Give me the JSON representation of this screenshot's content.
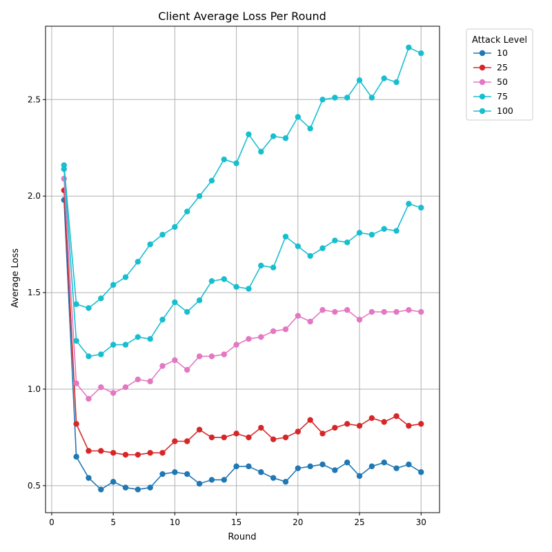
{
  "chart_data": {
    "type": "line",
    "title": "Client Average Loss Per Round",
    "xlabel": "Round",
    "ylabel": "Average Loss",
    "xlim": [
      -0.5,
      31.5
    ],
    "ylim": [
      0.36,
      2.88
    ],
    "xticks": [
      0,
      5,
      10,
      15,
      20,
      25,
      30
    ],
    "yticks": [
      0.5,
      1.0,
      1.5,
      2.0,
      2.5
    ],
    "xtick_labels": [
      "0",
      "5",
      "10",
      "15",
      "20",
      "25",
      "30"
    ],
    "ytick_labels": [
      "0.5",
      "1.0",
      "1.5",
      "2.0",
      "2.5"
    ],
    "grid": true,
    "legend_title": "Attack Level",
    "legend_position": "outside-top-right",
    "x": [
      1,
      2,
      3,
      4,
      5,
      6,
      7,
      8,
      9,
      10,
      11,
      12,
      13,
      14,
      15,
      16,
      17,
      18,
      19,
      20,
      21,
      22,
      23,
      24,
      25,
      26,
      27,
      28,
      29,
      30
    ],
    "series": [
      {
        "name": "10",
        "color": "#1f77b4",
        "values": [
          1.98,
          0.65,
          0.54,
          0.48,
          0.52,
          0.49,
          0.48,
          0.49,
          0.56,
          0.57,
          0.56,
          0.51,
          0.53,
          0.53,
          0.6,
          0.6,
          0.57,
          0.54,
          0.52,
          0.59,
          0.6,
          0.61,
          0.58,
          0.62,
          0.55,
          0.6,
          0.62,
          0.59,
          0.61,
          0.57
        ]
      },
      {
        "name": "25",
        "color": "#d62728",
        "values": [
          2.03,
          0.82,
          0.68,
          0.68,
          0.67,
          0.66,
          0.66,
          0.67,
          0.67,
          0.73,
          0.73,
          0.79,
          0.75,
          0.75,
          0.77,
          0.75,
          0.8,
          0.74,
          0.75,
          0.78,
          0.84,
          0.77,
          0.8,
          0.82,
          0.81,
          0.85,
          0.83,
          0.86,
          0.81,
          0.82
        ]
      },
      {
        "name": "50",
        "color": "#e377c2",
        "values": [
          2.09,
          1.03,
          0.95,
          1.01,
          0.98,
          1.01,
          1.05,
          1.04,
          1.12,
          1.15,
          1.1,
          1.17,
          1.17,
          1.18,
          1.23,
          1.26,
          1.27,
          1.3,
          1.31,
          1.38,
          1.35,
          1.41,
          1.4,
          1.41,
          1.36,
          1.4,
          1.4,
          1.4,
          1.41,
          1.4
        ]
      },
      {
        "name": "75",
        "color": "#17becf",
        "values": [
          2.14,
          1.25,
          1.17,
          1.18,
          1.23,
          1.23,
          1.27,
          1.26,
          1.36,
          1.45,
          1.4,
          1.46,
          1.56,
          1.57,
          1.53,
          1.52,
          1.64,
          1.63,
          1.79,
          1.74,
          1.69,
          1.73,
          1.77,
          1.76,
          1.81,
          1.8,
          1.83,
          1.82,
          1.96,
          1.94
        ]
      },
      {
        "name": "100",
        "color": "#17becf",
        "values": [
          2.16,
          1.44,
          1.42,
          1.47,
          1.54,
          1.58,
          1.66,
          1.75,
          1.8,
          1.84,
          1.92,
          2.0,
          2.08,
          2.19,
          2.17,
          2.32,
          2.23,
          2.31,
          2.3,
          2.41,
          2.35,
          2.5,
          2.51,
          2.51,
          2.6,
          2.51,
          2.61,
          2.59,
          2.77,
          2.74
        ]
      }
    ]
  }
}
